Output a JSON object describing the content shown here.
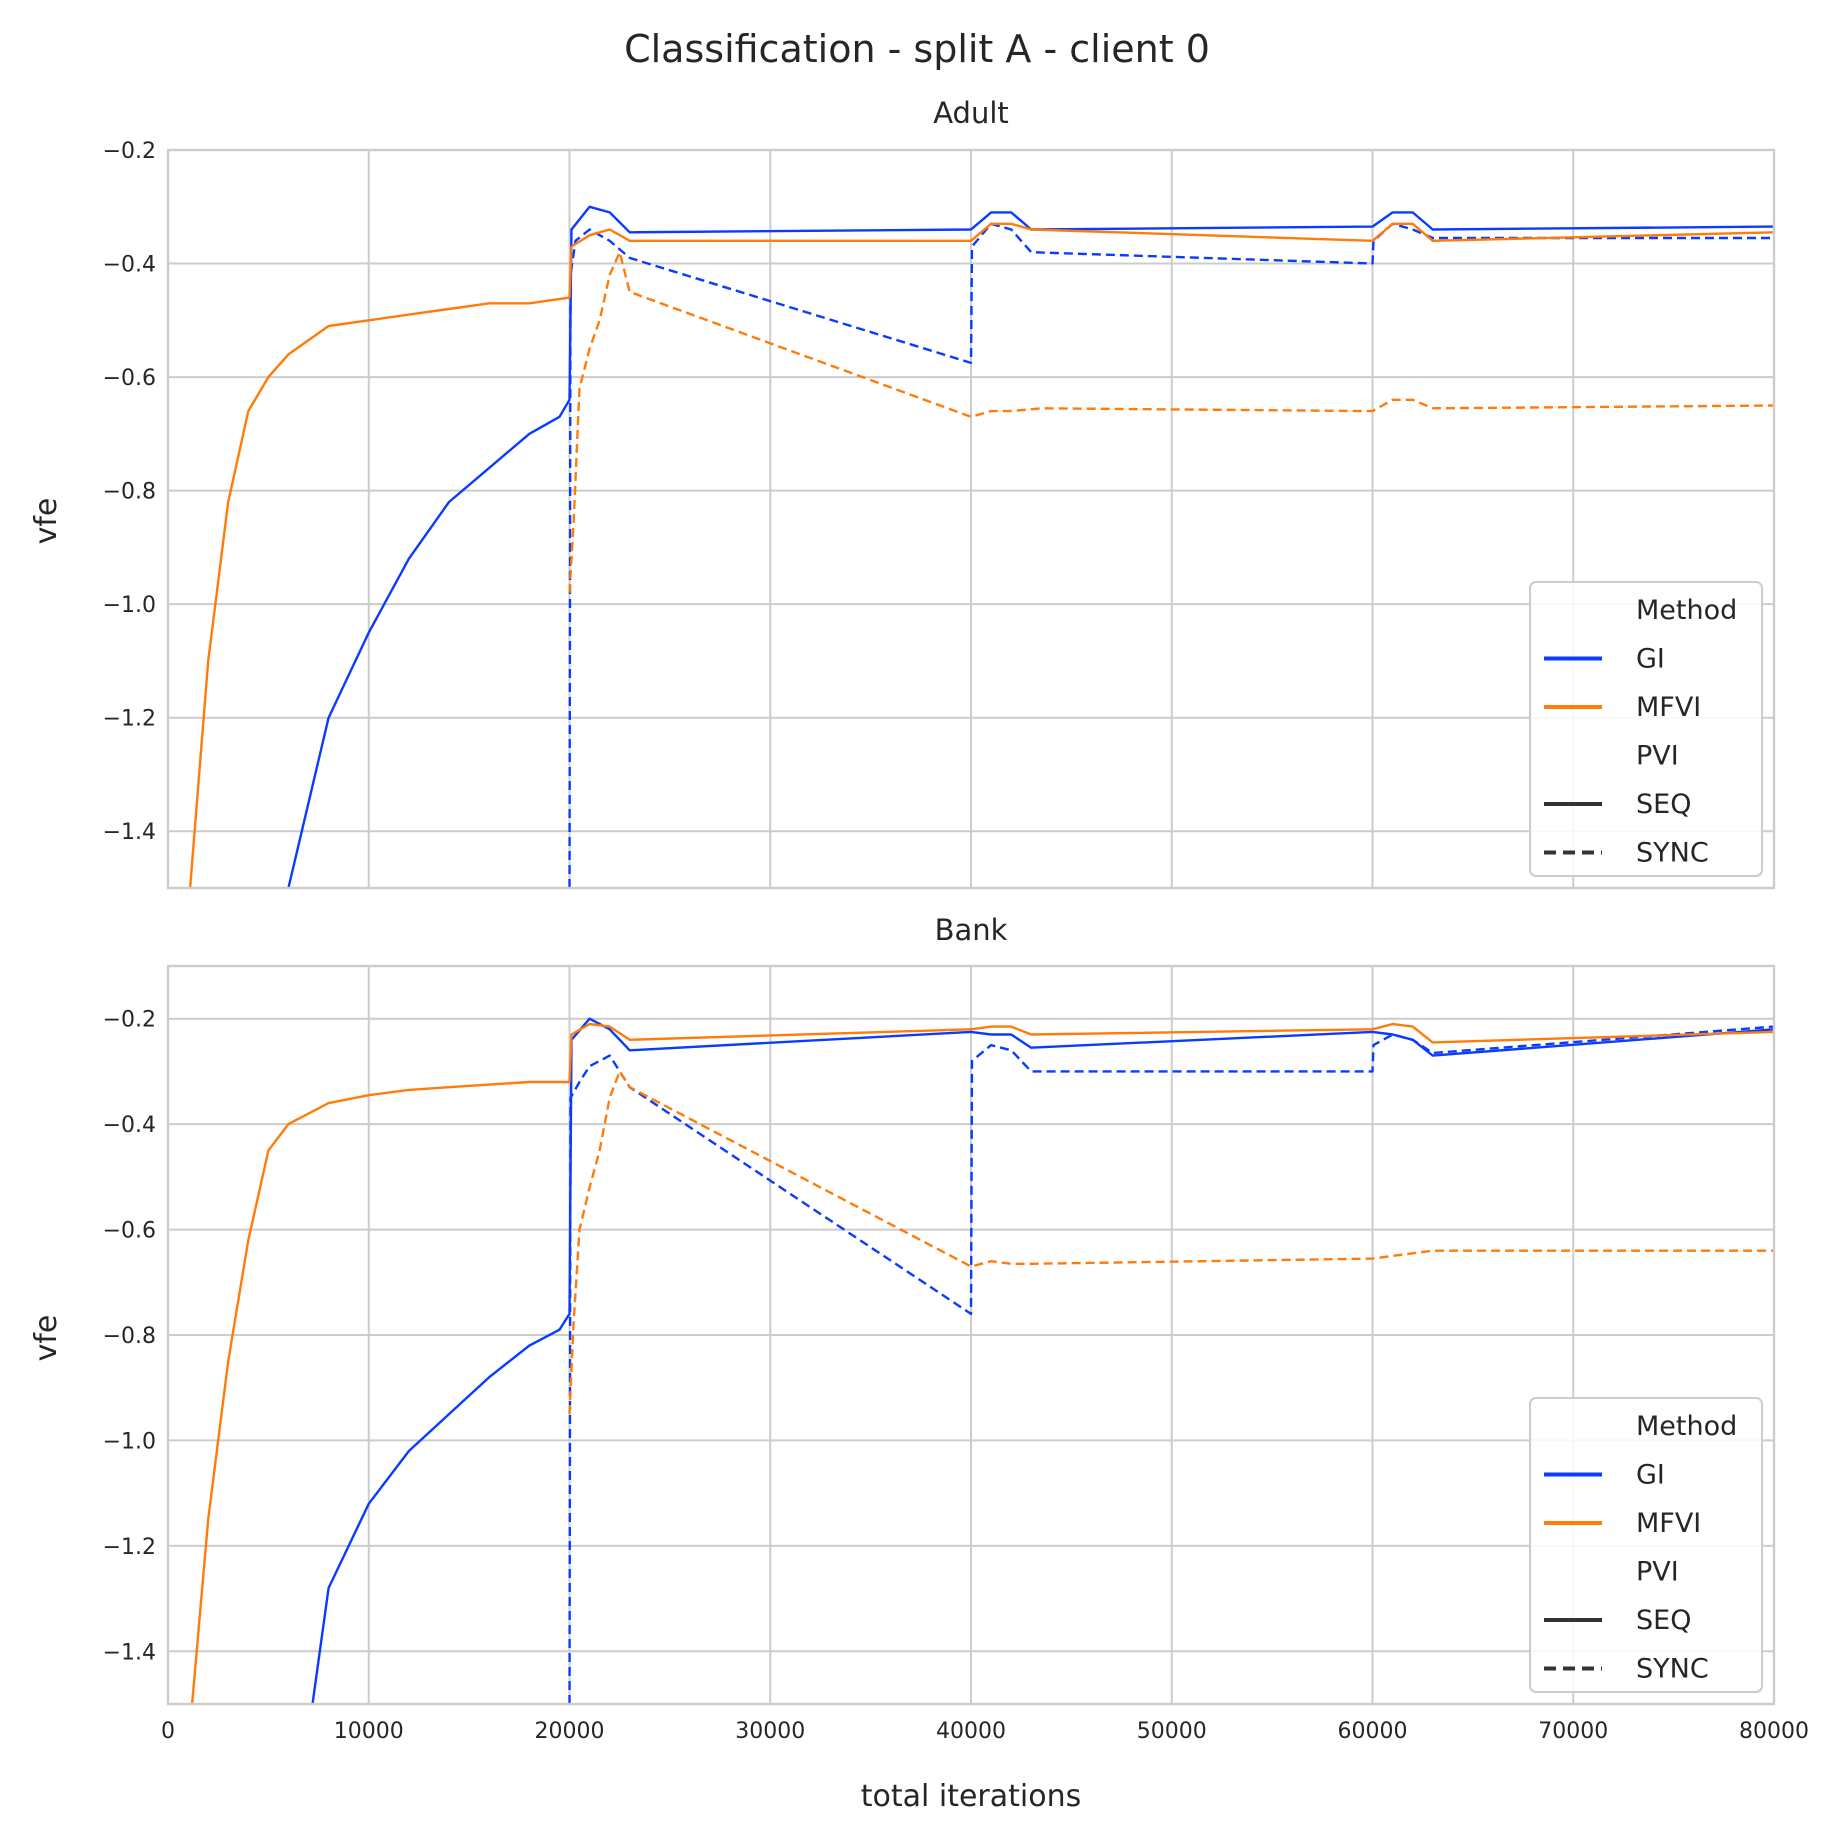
{
  "figure": {
    "title": "Classification - split A - client 0"
  },
  "colors": {
    "GI": "#0a3cff",
    "MFVI": "#ff7c0a",
    "grid": "#cccccc",
    "frame": "#cccccc",
    "text": "#262626",
    "legend_black": "#333333"
  },
  "legend": {
    "title_method": "Method",
    "entry_gi": "GI",
    "entry_mfvi": "MFVI",
    "title_pvi": "PVI",
    "entry_seq": "SEQ",
    "entry_sync": "SYNC",
    "placement": "lower right"
  },
  "chart_data": [
    {
      "type": "line",
      "title": "Adult",
      "xlabel": "",
      "ylabel": "vfe",
      "xlim": [
        0,
        80000
      ],
      "ylim": [
        -1.5,
        -0.2
      ],
      "yticks": [
        -1.4,
        -1.2,
        -1.0,
        -0.8,
        -0.6,
        -0.4,
        -0.2
      ],
      "grid": true,
      "series": [
        {
          "name": "GI SEQ",
          "method": "GI",
          "pvi": "SEQ",
          "x": [
            6000,
            8000,
            10000,
            12000,
            14000,
            16000,
            18000,
            19500,
            20000,
            20100,
            21000,
            22000,
            23000,
            40000,
            41000,
            42000,
            43000,
            60000,
            61000,
            62000,
            63000,
            80000
          ],
          "y": [
            -1.5,
            -1.2,
            -1.05,
            -0.92,
            -0.82,
            -0.76,
            -0.7,
            -0.67,
            -0.64,
            -0.34,
            -0.3,
            -0.31,
            -0.345,
            -0.34,
            -0.31,
            -0.31,
            -0.34,
            -0.335,
            -0.31,
            -0.31,
            -0.34,
            -0.335
          ]
        },
        {
          "name": "GI SYNC",
          "method": "GI",
          "pvi": "SYNC",
          "x": [
            20000,
            20050,
            20300,
            21000,
            22000,
            23000,
            40000,
            40050,
            41000,
            42000,
            43000,
            60000,
            60050,
            61000,
            62000,
            63000,
            80000
          ],
          "y": [
            -1.5,
            -0.42,
            -0.36,
            -0.34,
            -0.36,
            -0.39,
            -0.575,
            -0.37,
            -0.33,
            -0.34,
            -0.38,
            -0.4,
            -0.36,
            -0.33,
            -0.34,
            -0.355,
            -0.355
          ]
        },
        {
          "name": "MFVI SEQ",
          "method": "MFVI",
          "pvi": "SEQ",
          "x": [
            1100,
            2000,
            3000,
            4000,
            5000,
            6000,
            8000,
            10000,
            12000,
            14000,
            16000,
            18000,
            20000,
            20100,
            21000,
            22000,
            23000,
            40000,
            41000,
            42000,
            43000,
            60000,
            61000,
            62000,
            63000,
            80000
          ],
          "y": [
            -1.5,
            -1.1,
            -0.82,
            -0.66,
            -0.6,
            -0.56,
            -0.51,
            -0.5,
            -0.49,
            -0.48,
            -0.47,
            -0.47,
            -0.46,
            -0.37,
            -0.35,
            -0.34,
            -0.36,
            -0.36,
            -0.33,
            -0.33,
            -0.34,
            -0.36,
            -0.33,
            -0.33,
            -0.36,
            -0.345
          ]
        },
        {
          "name": "MFVI SYNC",
          "method": "MFVI",
          "pvi": "SYNC",
          "x": [
            20000,
            20200,
            20500,
            21000,
            21500,
            22000,
            22500,
            23000,
            40000,
            41000,
            42000,
            43500,
            60000,
            61000,
            62000,
            63000,
            80000
          ],
          "y": [
            -0.98,
            -0.86,
            -0.62,
            -0.55,
            -0.5,
            -0.42,
            -0.38,
            -0.45,
            -0.67,
            -0.66,
            -0.66,
            -0.655,
            -0.66,
            -0.64,
            -0.64,
            -0.655,
            -0.65
          ]
        }
      ]
    },
    {
      "type": "line",
      "title": "Bank",
      "xlabel": "total iterations",
      "ylabel": "vfe",
      "xlim": [
        0,
        80000
      ],
      "ylim": [
        -1.5,
        -0.1
      ],
      "xticks": [
        0,
        10000,
        20000,
        30000,
        40000,
        50000,
        60000,
        70000,
        80000
      ],
      "yticks": [
        -1.4,
        -1.2,
        -1.0,
        -0.8,
        -0.6,
        -0.4,
        -0.2
      ],
      "grid": true,
      "series": [
        {
          "name": "GI SEQ",
          "method": "GI",
          "pvi": "SEQ",
          "x": [
            7200,
            8000,
            10000,
            12000,
            14000,
            16000,
            18000,
            19500,
            20000,
            20100,
            21000,
            22000,
            23000,
            40000,
            41000,
            42000,
            43000,
            60000,
            61000,
            62000,
            63000,
            80000
          ],
          "y": [
            -1.5,
            -1.28,
            -1.12,
            -1.02,
            -0.95,
            -0.88,
            -0.82,
            -0.79,
            -0.76,
            -0.24,
            -0.2,
            -0.22,
            -0.26,
            -0.225,
            -0.23,
            -0.23,
            -0.255,
            -0.225,
            -0.23,
            -0.24,
            -0.27,
            -0.22
          ]
        },
        {
          "name": "GI SYNC",
          "method": "GI",
          "pvi": "SYNC",
          "x": [
            20000,
            20050,
            20500,
            21000,
            22000,
            23000,
            40000,
            40050,
            41000,
            42000,
            43000,
            60000,
            60050,
            61000,
            62000,
            63000,
            80000
          ],
          "y": [
            -1.5,
            -0.35,
            -0.32,
            -0.29,
            -0.27,
            -0.33,
            -0.76,
            -0.28,
            -0.25,
            -0.26,
            -0.3,
            -0.3,
            -0.25,
            -0.23,
            -0.24,
            -0.265,
            -0.215
          ]
        },
        {
          "name": "MFVI SEQ",
          "method": "MFVI",
          "pvi": "SEQ",
          "x": [
            1200,
            2000,
            3000,
            4000,
            5000,
            6000,
            8000,
            10000,
            12000,
            14000,
            16000,
            18000,
            20000,
            20100,
            21000,
            22000,
            23000,
            40000,
            41000,
            42000,
            43000,
            60000,
            61000,
            62000,
            63000,
            80000
          ],
          "y": [
            -1.5,
            -1.15,
            -0.85,
            -0.62,
            -0.45,
            -0.4,
            -0.36,
            -0.345,
            -0.335,
            -0.33,
            -0.325,
            -0.32,
            -0.32,
            -0.23,
            -0.21,
            -0.215,
            -0.24,
            -0.22,
            -0.215,
            -0.215,
            -0.23,
            -0.22,
            -0.21,
            -0.215,
            -0.245,
            -0.225
          ]
        },
        {
          "name": "MFVI SYNC",
          "method": "MFVI",
          "pvi": "SYNC",
          "x": [
            20000,
            20200,
            20500,
            21000,
            21500,
            22000,
            22500,
            23000,
            40000,
            41000,
            42000,
            43000,
            60000,
            61000,
            62000,
            63000,
            64000,
            80000
          ],
          "y": [
            -0.95,
            -0.78,
            -0.6,
            -0.52,
            -0.45,
            -0.35,
            -0.3,
            -0.33,
            -0.67,
            -0.66,
            -0.665,
            -0.665,
            -0.655,
            -0.65,
            -0.645,
            -0.64,
            -0.64,
            -0.64
          ]
        }
      ]
    }
  ]
}
